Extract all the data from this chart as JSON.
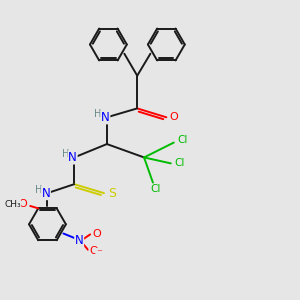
{
  "background_color": "#e6e6e6",
  "colors": {
    "C": "#1a1a1a",
    "N": "#0000ff",
    "O": "#ff0000",
    "S": "#cccc00",
    "Cl": "#00bb00",
    "H": "#6a8a8a",
    "bond": "#1a1a1a"
  },
  "figsize": [
    3.0,
    3.0
  ],
  "dpi": 100
}
